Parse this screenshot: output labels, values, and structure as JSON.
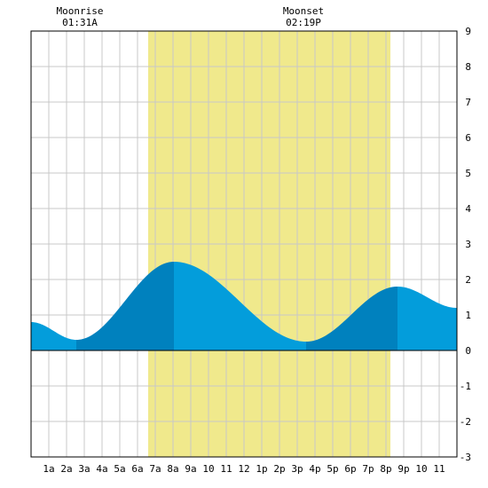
{
  "header": {
    "moonrise_label": "Moonrise",
    "moonrise_time": "01:31A",
    "moonset_label": "Moonset",
    "moonset_time": "02:19P"
  },
  "chart_data": {
    "type": "area",
    "title": "",
    "xlabel": "",
    "ylabel": "",
    "xlim": [
      0,
      24
    ],
    "ylim": [
      -3,
      9
    ],
    "grid": true,
    "x_tick_labels": [
      "1a",
      "2a",
      "3a",
      "4a",
      "5a",
      "6a",
      "7a",
      "8a",
      "9a",
      "10",
      "11",
      "12",
      "1p",
      "2p",
      "3p",
      "4p",
      "5p",
      "6p",
      "7p",
      "8p",
      "9p",
      "10",
      "11"
    ],
    "y_ticks": [
      -3,
      -2,
      -1,
      0,
      1,
      2,
      3,
      4,
      5,
      6,
      7,
      8,
      9
    ],
    "daylight": {
      "start_hour": 6.6,
      "end_hour": 20.25
    },
    "tide_extremes": [
      {
        "hour": 0.0,
        "height": 0.8
      },
      {
        "hour": 2.55,
        "height": 0.3
      },
      {
        "hour": 8.05,
        "height": 2.5
      },
      {
        "hour": 15.5,
        "height": 0.25
      },
      {
        "hour": 20.65,
        "height": 1.8
      },
      {
        "hour": 24.0,
        "height": 1.2
      }
    ],
    "colors": {
      "daylight": "#f0e98c",
      "tide_rising": "#0081be",
      "tide_falling": "#039ddb",
      "grid": "#c8c8c8",
      "axis": "#000000"
    }
  }
}
